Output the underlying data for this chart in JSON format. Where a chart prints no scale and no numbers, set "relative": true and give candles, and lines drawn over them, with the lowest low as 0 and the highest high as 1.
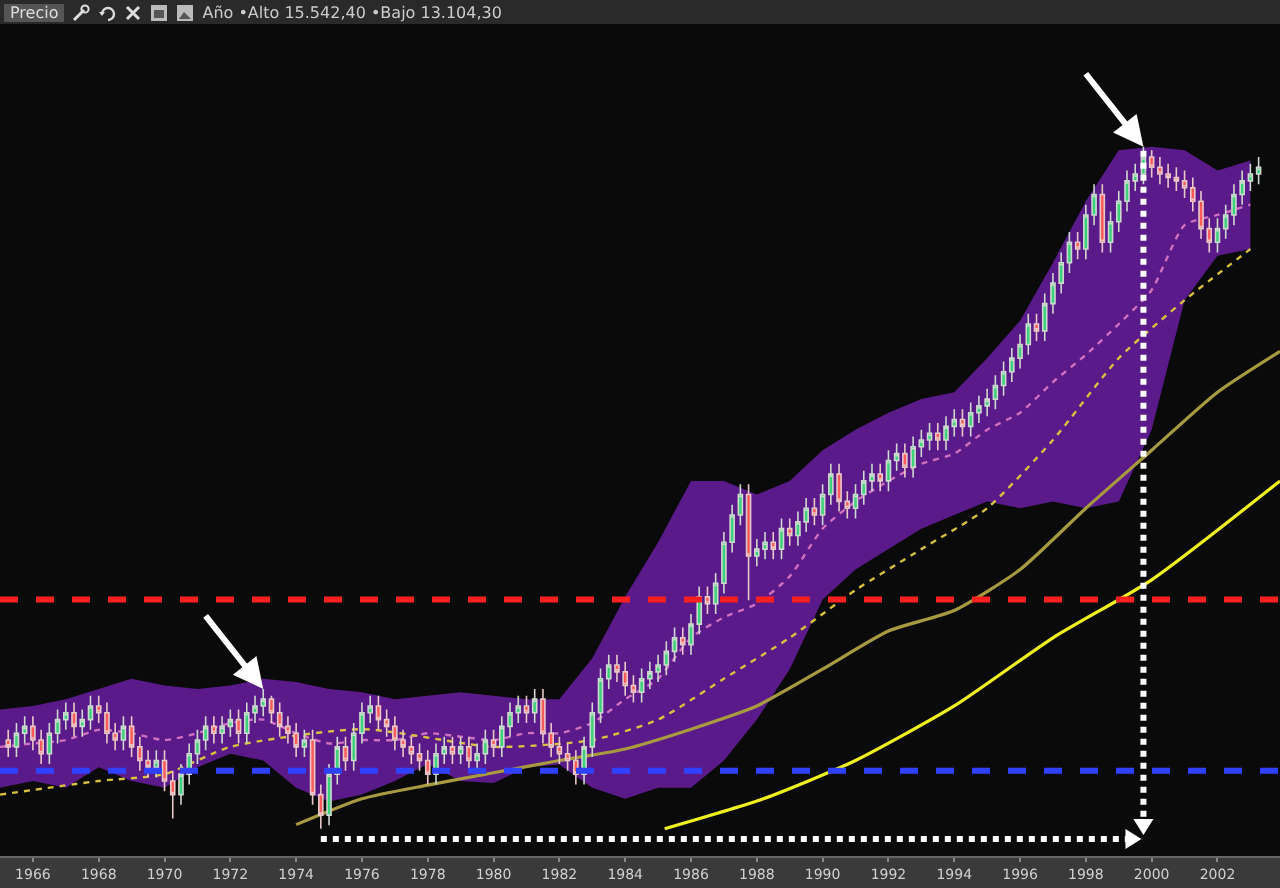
{
  "chart_data": {
    "type": "candlestick",
    "relative": true,
    "annotations": [
      "Precio",
      "Año •Alto 15.542,40 •Bajo 13.104,30"
    ],
    "x": [
      1965.25,
      1965.5,
      1965.75,
      1966,
      1966.25,
      1966.5,
      1966.75,
      1967,
      1967.25,
      1967.5,
      1967.75,
      1968,
      1968.25,
      1968.5,
      1968.75,
      1969,
      1969.25,
      1969.5,
      1969.75,
      1970,
      1970.25,
      1970.5,
      1970.75,
      1971,
      1971.25,
      1971.5,
      1971.75,
      1972,
      1972.25,
      1972.5,
      1972.75,
      1973,
      1973.25,
      1973.5,
      1973.75,
      1974,
      1974.25,
      1974.5,
      1974.75,
      1975,
      1975.25,
      1975.5,
      1975.75,
      1976,
      1976.25,
      1976.5,
      1976.75,
      1977,
      1977.25,
      1977.5,
      1977.75,
      1978,
      1978.25,
      1978.5,
      1978.75,
      1979,
      1979.25,
      1979.5,
      1979.75,
      1980,
      1980.25,
      1980.5,
      1980.75,
      1981,
      1981.25,
      1981.5,
      1981.75,
      1982,
      1982.25,
      1982.5,
      1982.75,
      1983,
      1983.25,
      1983.5,
      1983.75,
      1984,
      1984.25,
      1984.5,
      1984.75,
      1985,
      1985.25,
      1985.5,
      1985.75,
      1986,
      1986.25,
      1986.5,
      1986.75,
      1987,
      1987.25,
      1987.5,
      1987.75,
      1988,
      1988.25,
      1988.5,
      1988.75,
      1989,
      1989.25,
      1989.5,
      1989.75,
      1990,
      1990.25,
      1990.5,
      1990.75,
      1991,
      1991.25,
      1991.5,
      1991.75,
      1992,
      1992.25,
      1992.5,
      1992.75,
      1993,
      1993.25,
      1993.5,
      1993.75,
      1994,
      1994.25,
      1994.5,
      1994.75,
      1995,
      1995.25,
      1995.5,
      1995.75,
      1996,
      1996.25,
      1996.5,
      1996.75,
      1997,
      1997.25,
      1997.5,
      1997.75,
      1998,
      1998.25,
      1998.5,
      1998.75,
      1999,
      1999.25,
      1999.5,
      1999.75,
      2000,
      2000.25,
      2000.5,
      2000.75,
      2001,
      2001.25,
      2001.5,
      2001.75,
      2002,
      2002.25,
      2002.5,
      2002.75,
      2003,
      2003.25
    ],
    "ohlc": [
      [
        0.13,
        0.145,
        0.105,
        0.12
      ],
      [
        0.12,
        0.155,
        0.105,
        0.14
      ],
      [
        0.14,
        0.165,
        0.125,
        0.15
      ],
      [
        0.15,
        0.165,
        0.115,
        0.13
      ],
      [
        0.13,
        0.145,
        0.095,
        0.11
      ],
      [
        0.11,
        0.155,
        0.095,
        0.14
      ],
      [
        0.14,
        0.175,
        0.125,
        0.16
      ],
      [
        0.16,
        0.185,
        0.145,
        0.17
      ],
      [
        0.17,
        0.185,
        0.135,
        0.15
      ],
      [
        0.15,
        0.175,
        0.135,
        0.16
      ],
      [
        0.16,
        0.195,
        0.145,
        0.18
      ],
      [
        0.18,
        0.195,
        0.155,
        0.17
      ],
      [
        0.17,
        0.185,
        0.125,
        0.14
      ],
      [
        0.14,
        0.155,
        0.115,
        0.13
      ],
      [
        0.13,
        0.165,
        0.115,
        0.15
      ],
      [
        0.15,
        0.165,
        0.105,
        0.12
      ],
      [
        0.12,
        0.135,
        0.085,
        0.1
      ],
      [
        0.1,
        0.115,
        0.075,
        0.09
      ],
      [
        0.09,
        0.115,
        0.075,
        0.1
      ],
      [
        0.1,
        0.115,
        0.055,
        0.07
      ],
      [
        0.07,
        0.085,
        0.015,
        0.05
      ],
      [
        0.05,
        0.095,
        0.035,
        0.08
      ],
      [
        0.08,
        0.125,
        0.065,
        0.11
      ],
      [
        0.11,
        0.145,
        0.095,
        0.13
      ],
      [
        0.13,
        0.165,
        0.115,
        0.15
      ],
      [
        0.15,
        0.165,
        0.125,
        0.14
      ],
      [
        0.14,
        0.165,
        0.125,
        0.15
      ],
      [
        0.15,
        0.175,
        0.135,
        0.16
      ],
      [
        0.16,
        0.175,
        0.125,
        0.14
      ],
      [
        0.14,
        0.185,
        0.125,
        0.17
      ],
      [
        0.17,
        0.195,
        0.155,
        0.18
      ],
      [
        0.18,
        0.205,
        0.165,
        0.19
      ],
      [
        0.19,
        0.195,
        0.155,
        0.17
      ],
      [
        0.17,
        0.185,
        0.135,
        0.15
      ],
      [
        0.15,
        0.165,
        0.125,
        0.14
      ],
      [
        0.14,
        0.155,
        0.105,
        0.12
      ],
      [
        0.12,
        0.145,
        0.105,
        0.13
      ],
      [
        0.13,
        0.145,
        0.035,
        0.05
      ],
      [
        0.05,
        0.065,
        0.0,
        0.02
      ],
      [
        0.02,
        0.095,
        0.005,
        0.08
      ],
      [
        0.08,
        0.135,
        0.065,
        0.12
      ],
      [
        0.12,
        0.135,
        0.085,
        0.1
      ],
      [
        0.1,
        0.155,
        0.085,
        0.14
      ],
      [
        0.14,
        0.185,
        0.125,
        0.17
      ],
      [
        0.17,
        0.195,
        0.155,
        0.18
      ],
      [
        0.18,
        0.195,
        0.145,
        0.16
      ],
      [
        0.16,
        0.175,
        0.135,
        0.15
      ],
      [
        0.15,
        0.165,
        0.115,
        0.13
      ],
      [
        0.13,
        0.145,
        0.105,
        0.12
      ],
      [
        0.12,
        0.135,
        0.095,
        0.11
      ],
      [
        0.11,
        0.125,
        0.085,
        0.1
      ],
      [
        0.1,
        0.115,
        0.065,
        0.08
      ],
      [
        0.08,
        0.125,
        0.065,
        0.11
      ],
      [
        0.11,
        0.135,
        0.095,
        0.12
      ],
      [
        0.12,
        0.135,
        0.095,
        0.11
      ],
      [
        0.11,
        0.135,
        0.095,
        0.12
      ],
      [
        0.12,
        0.135,
        0.085,
        0.1
      ],
      [
        0.1,
        0.125,
        0.085,
        0.11
      ],
      [
        0.11,
        0.145,
        0.095,
        0.13
      ],
      [
        0.13,
        0.145,
        0.105,
        0.12
      ],
      [
        0.12,
        0.165,
        0.105,
        0.15
      ],
      [
        0.15,
        0.185,
        0.135,
        0.17
      ],
      [
        0.17,
        0.195,
        0.155,
        0.18
      ],
      [
        0.18,
        0.195,
        0.155,
        0.17
      ],
      [
        0.17,
        0.205,
        0.155,
        0.19
      ],
      [
        0.19,
        0.205,
        0.125,
        0.14
      ],
      [
        0.14,
        0.155,
        0.105,
        0.12
      ],
      [
        0.12,
        0.135,
        0.095,
        0.11
      ],
      [
        0.11,
        0.125,
        0.085,
        0.1
      ],
      [
        0.1,
        0.115,
        0.065,
        0.08
      ],
      [
        0.08,
        0.135,
        0.065,
        0.12
      ],
      [
        0.12,
        0.185,
        0.105,
        0.17
      ],
      [
        0.17,
        0.235,
        0.155,
        0.22
      ],
      [
        0.22,
        0.255,
        0.205,
        0.24
      ],
      [
        0.24,
        0.255,
        0.215,
        0.23
      ],
      [
        0.23,
        0.245,
        0.195,
        0.21
      ],
      [
        0.21,
        0.225,
        0.185,
        0.2
      ],
      [
        0.2,
        0.235,
        0.185,
        0.22
      ],
      [
        0.22,
        0.245,
        0.205,
        0.23
      ],
      [
        0.23,
        0.255,
        0.215,
        0.24
      ],
      [
        0.24,
        0.275,
        0.225,
        0.26
      ],
      [
        0.26,
        0.295,
        0.245,
        0.28
      ],
      [
        0.28,
        0.295,
        0.255,
        0.27
      ],
      [
        0.27,
        0.315,
        0.255,
        0.3
      ],
      [
        0.3,
        0.355,
        0.285,
        0.34
      ],
      [
        0.34,
        0.355,
        0.315,
        0.33
      ],
      [
        0.33,
        0.375,
        0.315,
        0.36
      ],
      [
        0.36,
        0.435,
        0.345,
        0.42
      ],
      [
        0.42,
        0.475,
        0.405,
        0.46
      ],
      [
        0.46,
        0.505,
        0.445,
        0.49
      ],
      [
        0.49,
        0.505,
        0.335,
        0.4
      ],
      [
        0.4,
        0.425,
        0.385,
        0.41
      ],
      [
        0.41,
        0.435,
        0.395,
        0.42
      ],
      [
        0.42,
        0.435,
        0.395,
        0.41
      ],
      [
        0.41,
        0.455,
        0.395,
        0.44
      ],
      [
        0.44,
        0.455,
        0.415,
        0.43
      ],
      [
        0.43,
        0.465,
        0.415,
        0.45
      ],
      [
        0.45,
        0.485,
        0.435,
        0.47
      ],
      [
        0.47,
        0.485,
        0.445,
        0.46
      ],
      [
        0.46,
        0.505,
        0.445,
        0.49
      ],
      [
        0.49,
        0.535,
        0.475,
        0.52
      ],
      [
        0.52,
        0.535,
        0.465,
        0.48
      ],
      [
        0.48,
        0.495,
        0.455,
        0.47
      ],
      [
        0.47,
        0.505,
        0.455,
        0.49
      ],
      [
        0.49,
        0.525,
        0.475,
        0.51
      ],
      [
        0.51,
        0.535,
        0.495,
        0.52
      ],
      [
        0.52,
        0.535,
        0.495,
        0.51
      ],
      [
        0.51,
        0.555,
        0.495,
        0.54
      ],
      [
        0.54,
        0.565,
        0.525,
        0.55
      ],
      [
        0.55,
        0.565,
        0.515,
        0.53
      ],
      [
        0.53,
        0.575,
        0.515,
        0.56
      ],
      [
        0.56,
        0.585,
        0.545,
        0.57
      ],
      [
        0.57,
        0.595,
        0.555,
        0.58
      ],
      [
        0.58,
        0.595,
        0.555,
        0.57
      ],
      [
        0.57,
        0.605,
        0.555,
        0.59
      ],
      [
        0.59,
        0.615,
        0.575,
        0.6
      ],
      [
        0.6,
        0.615,
        0.575,
        0.59
      ],
      [
        0.59,
        0.625,
        0.575,
        0.61
      ],
      [
        0.61,
        0.635,
        0.595,
        0.62
      ],
      [
        0.62,
        0.645,
        0.605,
        0.63
      ],
      [
        0.63,
        0.665,
        0.615,
        0.65
      ],
      [
        0.65,
        0.685,
        0.635,
        0.67
      ],
      [
        0.67,
        0.705,
        0.655,
        0.69
      ],
      [
        0.69,
        0.725,
        0.675,
        0.71
      ],
      [
        0.71,
        0.755,
        0.695,
        0.74
      ],
      [
        0.74,
        0.755,
        0.715,
        0.73
      ],
      [
        0.73,
        0.785,
        0.715,
        0.77
      ],
      [
        0.77,
        0.815,
        0.755,
        0.8
      ],
      [
        0.8,
        0.845,
        0.785,
        0.83
      ],
      [
        0.83,
        0.875,
        0.815,
        0.86
      ],
      [
        0.86,
        0.875,
        0.835,
        0.85
      ],
      [
        0.85,
        0.915,
        0.835,
        0.9
      ],
      [
        0.9,
        0.945,
        0.885,
        0.93
      ],
      [
        0.93,
        0.945,
        0.845,
        0.86
      ],
      [
        0.86,
        0.905,
        0.845,
        0.89
      ],
      [
        0.89,
        0.935,
        0.875,
        0.92
      ],
      [
        0.92,
        0.965,
        0.905,
        0.95
      ],
      [
        0.95,
        0.975,
        0.935,
        0.96
      ],
      [
        0.96,
        1.0,
        0.945,
        0.985
      ],
      [
        0.985,
        0.995,
        0.955,
        0.97
      ],
      [
        0.97,
        0.985,
        0.945,
        0.96
      ],
      [
        0.96,
        0.975,
        0.94,
        0.955
      ],
      [
        0.955,
        0.97,
        0.935,
        0.95
      ],
      [
        0.95,
        0.965,
        0.925,
        0.94
      ],
      [
        0.94,
        0.955,
        0.905,
        0.92
      ],
      [
        0.92,
        0.935,
        0.865,
        0.88
      ],
      [
        0.88,
        0.895,
        0.845,
        0.86
      ],
      [
        0.86,
        0.895,
        0.845,
        0.88
      ],
      [
        0.88,
        0.915,
        0.865,
        0.9
      ],
      [
        0.9,
        0.945,
        0.885,
        0.93
      ],
      [
        0.93,
        0.965,
        0.915,
        0.95
      ],
      [
        0.95,
        0.975,
        0.935,
        0.96
      ],
      [
        0.96,
        0.985,
        0.945,
        0.97
      ]
    ],
    "xlim": [
      1965,
      2003.9
    ],
    "xticks": [
      1966,
      1968,
      1970,
      1972,
      1974,
      1976,
      1978,
      1980,
      1982,
      1984,
      1986,
      1988,
      1990,
      1992,
      1994,
      1996,
      1998,
      2000,
      2002
    ],
    "series": [
      {
        "type": "line",
        "color": "#d070c0",
        "line_style": "dotted",
        "x": [
          1965,
          1966,
          1967,
          1968,
          1969,
          1970,
          1971,
          1972,
          1973,
          1974,
          1975,
          1976,
          1977,
          1978,
          1979,
          1980,
          1981,
          1982,
          1983,
          1984,
          1985,
          1986,
          1987,
          1988,
          1989,
          1990,
          1991,
          1992,
          1993,
          1994,
          1995,
          1996,
          1997,
          1998,
          1999,
          2000,
          2001,
          2002,
          2003
        ],
        "values": [
          0.12,
          0.125,
          0.13,
          0.145,
          0.14,
          0.13,
          0.14,
          0.155,
          0.16,
          0.14,
          0.125,
          0.13,
          0.13,
          0.14,
          0.135,
          0.13,
          0.14,
          0.14,
          0.155,
          0.19,
          0.22,
          0.28,
          0.31,
          0.33,
          0.37,
          0.44,
          0.48,
          0.51,
          0.535,
          0.55,
          0.585,
          0.61,
          0.655,
          0.695,
          0.74,
          0.79,
          0.885,
          0.9,
          0.915
        ],
        "upper": [
          0.175,
          0.18,
          0.19,
          0.205,
          0.22,
          0.21,
          0.205,
          0.21,
          0.22,
          0.215,
          0.205,
          0.2,
          0.19,
          0.195,
          0.2,
          0.195,
          0.19,
          0.19,
          0.25,
          0.34,
          0.42,
          0.51,
          0.51,
          0.49,
          0.51,
          0.555,
          0.585,
          0.61,
          0.63,
          0.64,
          0.69,
          0.745,
          0.83,
          0.92,
          0.995,
          1.0,
          0.995,
          0.965,
          0.98
        ],
        "lower": [
          0.06,
          0.07,
          0.06,
          0.09,
          0.07,
          0.06,
          0.09,
          0.11,
          0.1,
          0.06,
          0.04,
          0.05,
          0.07,
          0.095,
          0.07,
          0.067,
          0.09,
          0.094,
          0.06,
          0.044,
          0.06,
          0.06,
          0.1,
          0.16,
          0.234,
          0.336,
          0.38,
          0.41,
          0.44,
          0.46,
          0.48,
          0.47,
          0.48,
          0.47,
          0.48,
          0.585,
          0.775,
          0.84,
          0.85
        ]
      },
      {
        "type": "line",
        "color": "#d8c040",
        "line_style": "dotted",
        "x": [
          1965,
          1968,
          1970,
          1972,
          1976,
          1980,
          1983,
          1985,
          1987,
          1989,
          1991,
          1993,
          1995,
          1997,
          1999,
          2001,
          2003
        ],
        "values": [
          0.05,
          0.07,
          0.08,
          0.12,
          0.146,
          0.12,
          0.13,
          0.16,
          0.22,
          0.28,
          0.35,
          0.41,
          0.47,
          0.57,
          0.69,
          0.775,
          0.85
        ]
      },
      {
        "type": "line",
        "color": "#a89a40",
        "line_style": "solid",
        "x": [
          1974,
          1976,
          1978,
          1980,
          1982,
          1984,
          1986,
          1988,
          1990,
          1992,
          1994,
          1996,
          1998,
          2000,
          2002,
          2003.9
        ],
        "values": [
          0.006,
          0.044,
          0.064,
          0.082,
          0.1,
          0.117,
          0.146,
          0.18,
          0.234,
          0.29,
          0.32,
          0.38,
          0.47,
          0.555,
          0.64,
          0.7
        ]
      },
      {
        "type": "line",
        "color": "#f0f020",
        "line_style": "solid",
        "x": [
          1985.2,
          1988.2,
          1991,
          1994,
          1997,
          2000,
          2003.9
        ],
        "values": [
          0,
          0.044,
          0.1,
          0.18,
          0.28,
          0.365,
          0.51
        ]
      }
    ],
    "ref_lines": [
      {
        "axis": "y",
        "value": 0.336,
        "color": "#ff2020",
        "line_style": "dashed"
      },
      {
        "axis": "y",
        "value": 0.085,
        "color": "#3040ff",
        "line_style": "dashed"
      },
      {
        "axis": "x",
        "value": 1999.75,
        "color": "#ffffff",
        "line_style": "dotted"
      }
    ]
  }
}
